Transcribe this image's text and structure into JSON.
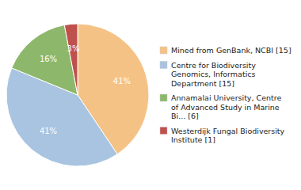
{
  "chart_data": {
    "type": "pie",
    "categories": [
      "Mined from GenBank, NCBI [15]",
      "Centre for Biodiversity\nGenomics, Informatics\nDepartment [15]",
      "Annamalai University, Centre\nof Advanced Study in Marine\nBi... [6]",
      "Westerdijk Fungal Biodiversity\nInstitute [1]"
    ],
    "values": [
      41,
      41,
      16,
      3
    ],
    "value_labels": [
      "41%",
      "41%",
      "16%",
      "3%"
    ],
    "colors": [
      "#F5C285",
      "#A8C4E0",
      "#8DB86B",
      "#C0504D"
    ],
    "data_labels": true,
    "legend": "right"
  }
}
